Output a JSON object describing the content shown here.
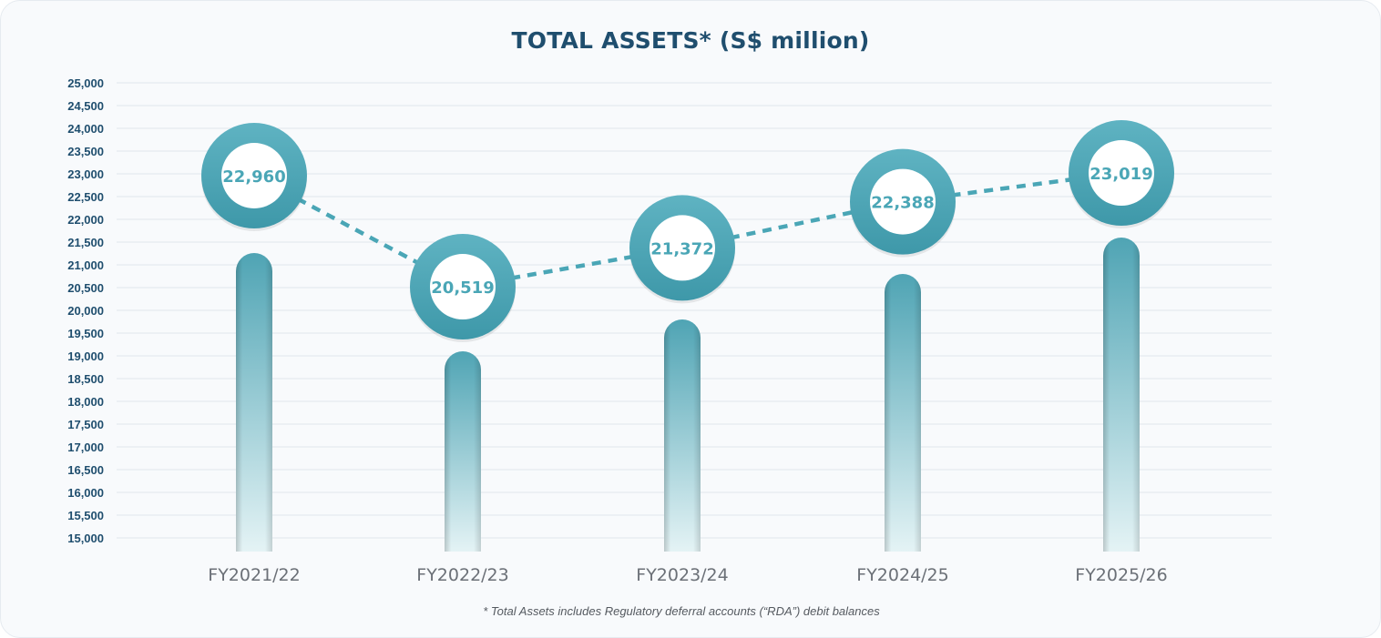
{
  "chart_data": {
    "type": "bar",
    "title": "TOTAL ASSETS* (S$ million)",
    "categories": [
      "FY2021/22",
      "FY2022/23",
      "FY2023/24",
      "FY2024/25",
      "FY2025/26"
    ],
    "series": [
      {
        "values": [
          22960,
          20519,
          21372,
          22388,
          23019
        ]
      }
    ],
    "data_labels": [
      "22,960",
      "20,519",
      "21,372",
      "22,388",
      "23,019"
    ],
    "y_ticks": [
      "15,000",
      "15,500",
      "16,000",
      "16,500",
      "17,000",
      "17,500",
      "18,000",
      "18,500",
      "19,000",
      "19,500",
      "20,000",
      "20,500",
      "21,000",
      "21,500",
      "22,000",
      "22,500",
      "23,000",
      "23,500",
      "24,000",
      "24,500",
      "25,000"
    ],
    "ylim": [
      15000,
      25000
    ],
    "grid": true,
    "footnote": "* Total Assets includes Regulatory deferral accounts (“RDA”) debit balances",
    "colors": {
      "title": "#1f4e6e",
      "accent": "#4aa6b6",
      "ring_dark": "#3e98a9",
      "ring_light": "#5fb3c2",
      "bar_top": "#4fa4b4",
      "bar_bottom": "#e4f3f5",
      "gridline": "#e1e6eb"
    }
  }
}
